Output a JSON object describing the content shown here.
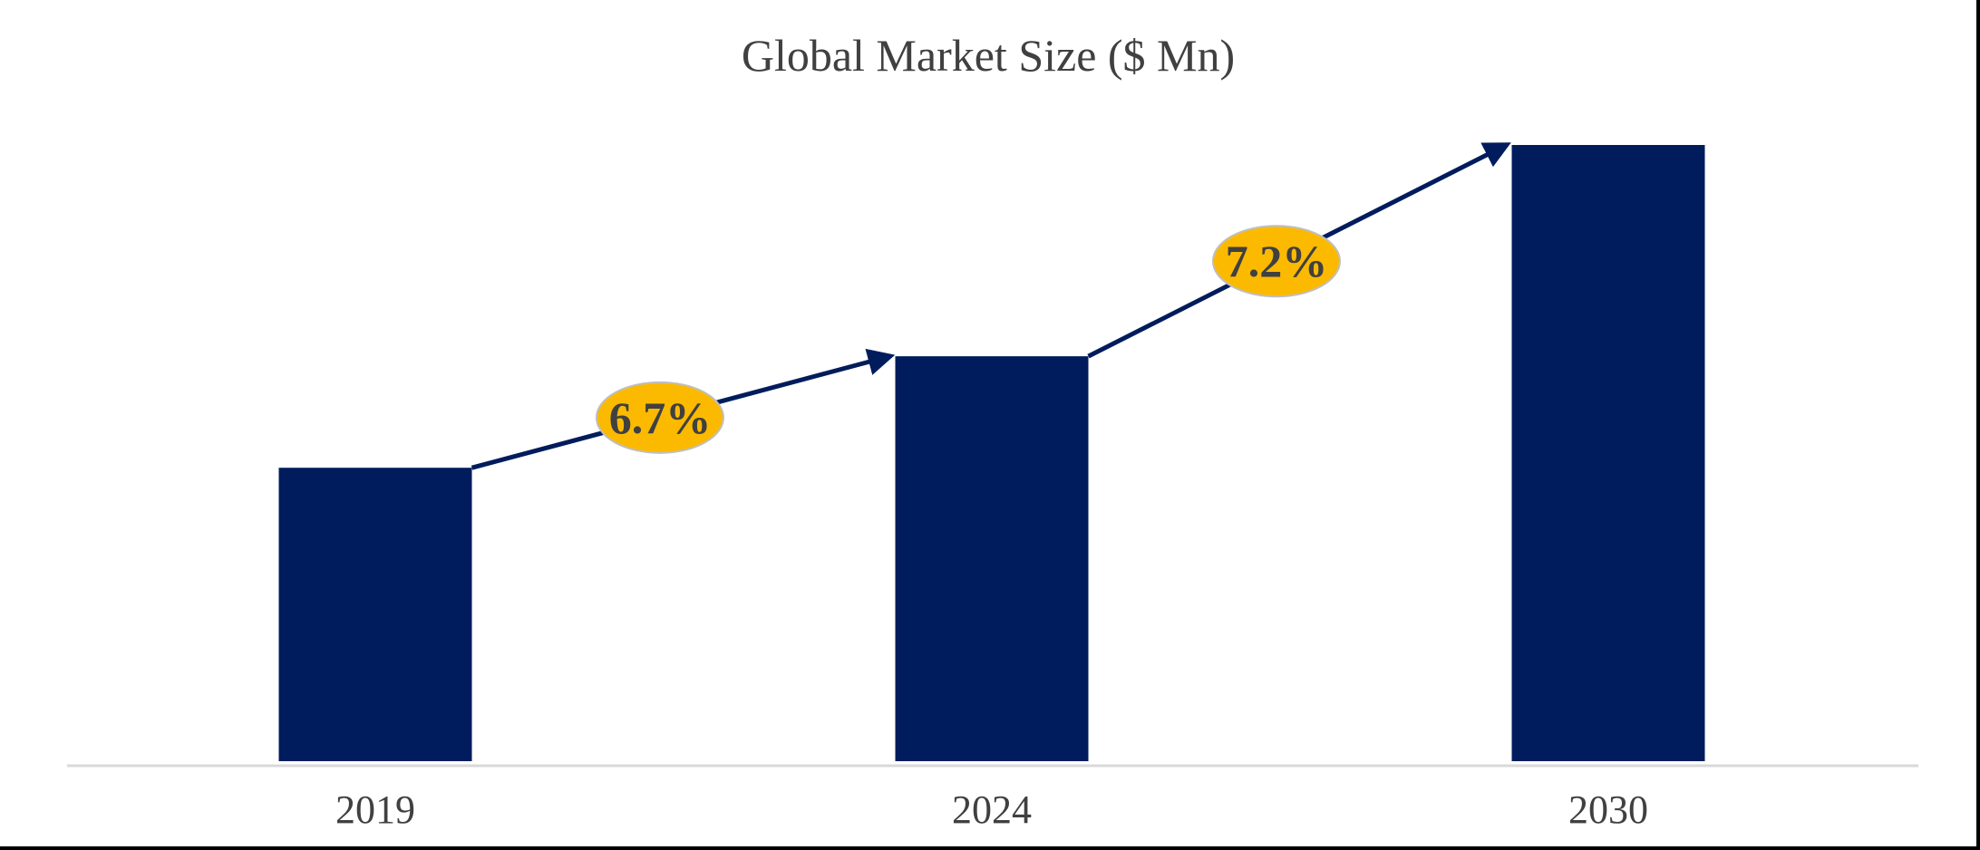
{
  "chart_data": {
    "type": "bar",
    "title": "Global Market Size ($ Mn)",
    "xlabel": "",
    "ylabel": "",
    "categories": [
      "2019",
      "2024",
      "2030"
    ],
    "values": [
      100,
      138,
      210
    ],
    "ylim": [
      0,
      210
    ],
    "grid": false,
    "legend": "none",
    "colors": {
      "bar": "#011C5C",
      "arrow": "#011C5C",
      "badge_fill": "#FBBA00",
      "badge_stroke": "#BFBFBF",
      "axis": "#D9D9D9"
    },
    "annotations": [
      {
        "from": "2019",
        "to": "2024",
        "label": "6.7%"
      },
      {
        "from": "2024",
        "to": "2030",
        "label": "7.2%"
      }
    ]
  }
}
